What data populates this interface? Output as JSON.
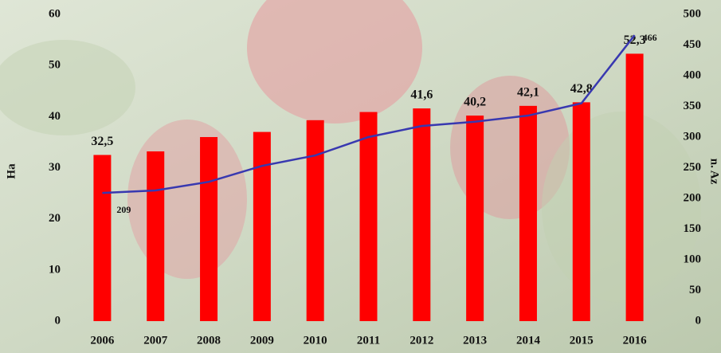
{
  "chart_data": {
    "type": "bar_line",
    "categories": [
      "2006",
      "2007",
      "2008",
      "2009",
      "2010",
      "2011",
      "2012",
      "2013",
      "2014",
      "2015",
      "2016"
    ],
    "ylabel": "Ha",
    "y2label": "n. Az",
    "ylim": [
      0,
      60
    ],
    "yticks": [
      0,
      10,
      20,
      30,
      40,
      50,
      60
    ],
    "y2lim": [
      0,
      500
    ],
    "y2ticks": [
      0,
      50,
      100,
      150,
      200,
      250,
      300,
      350,
      400,
      450,
      500
    ],
    "series": [
      {
        "type": "bar",
        "color": "#ff0000",
        "values": [
          32.5,
          33.2,
          36,
          37,
          39.3,
          40.9,
          41.6,
          40.2,
          42.1,
          42.8,
          52.3
        ],
        "value_labels": [
          "32,5",
          null,
          null,
          null,
          null,
          null,
          "41,6",
          "40,2",
          "42,1",
          "42,8",
          "52,3"
        ]
      },
      {
        "type": "line",
        "color": "#3838b0",
        "axis": "y2",
        "values": [
          209,
          213,
          227,
          253,
          270,
          300,
          318,
          325,
          335,
          355,
          466
        ],
        "value_labels": [
          "209",
          null,
          null,
          null,
          null,
          null,
          null,
          null,
          null,
          null,
          "466"
        ]
      }
    ]
  }
}
